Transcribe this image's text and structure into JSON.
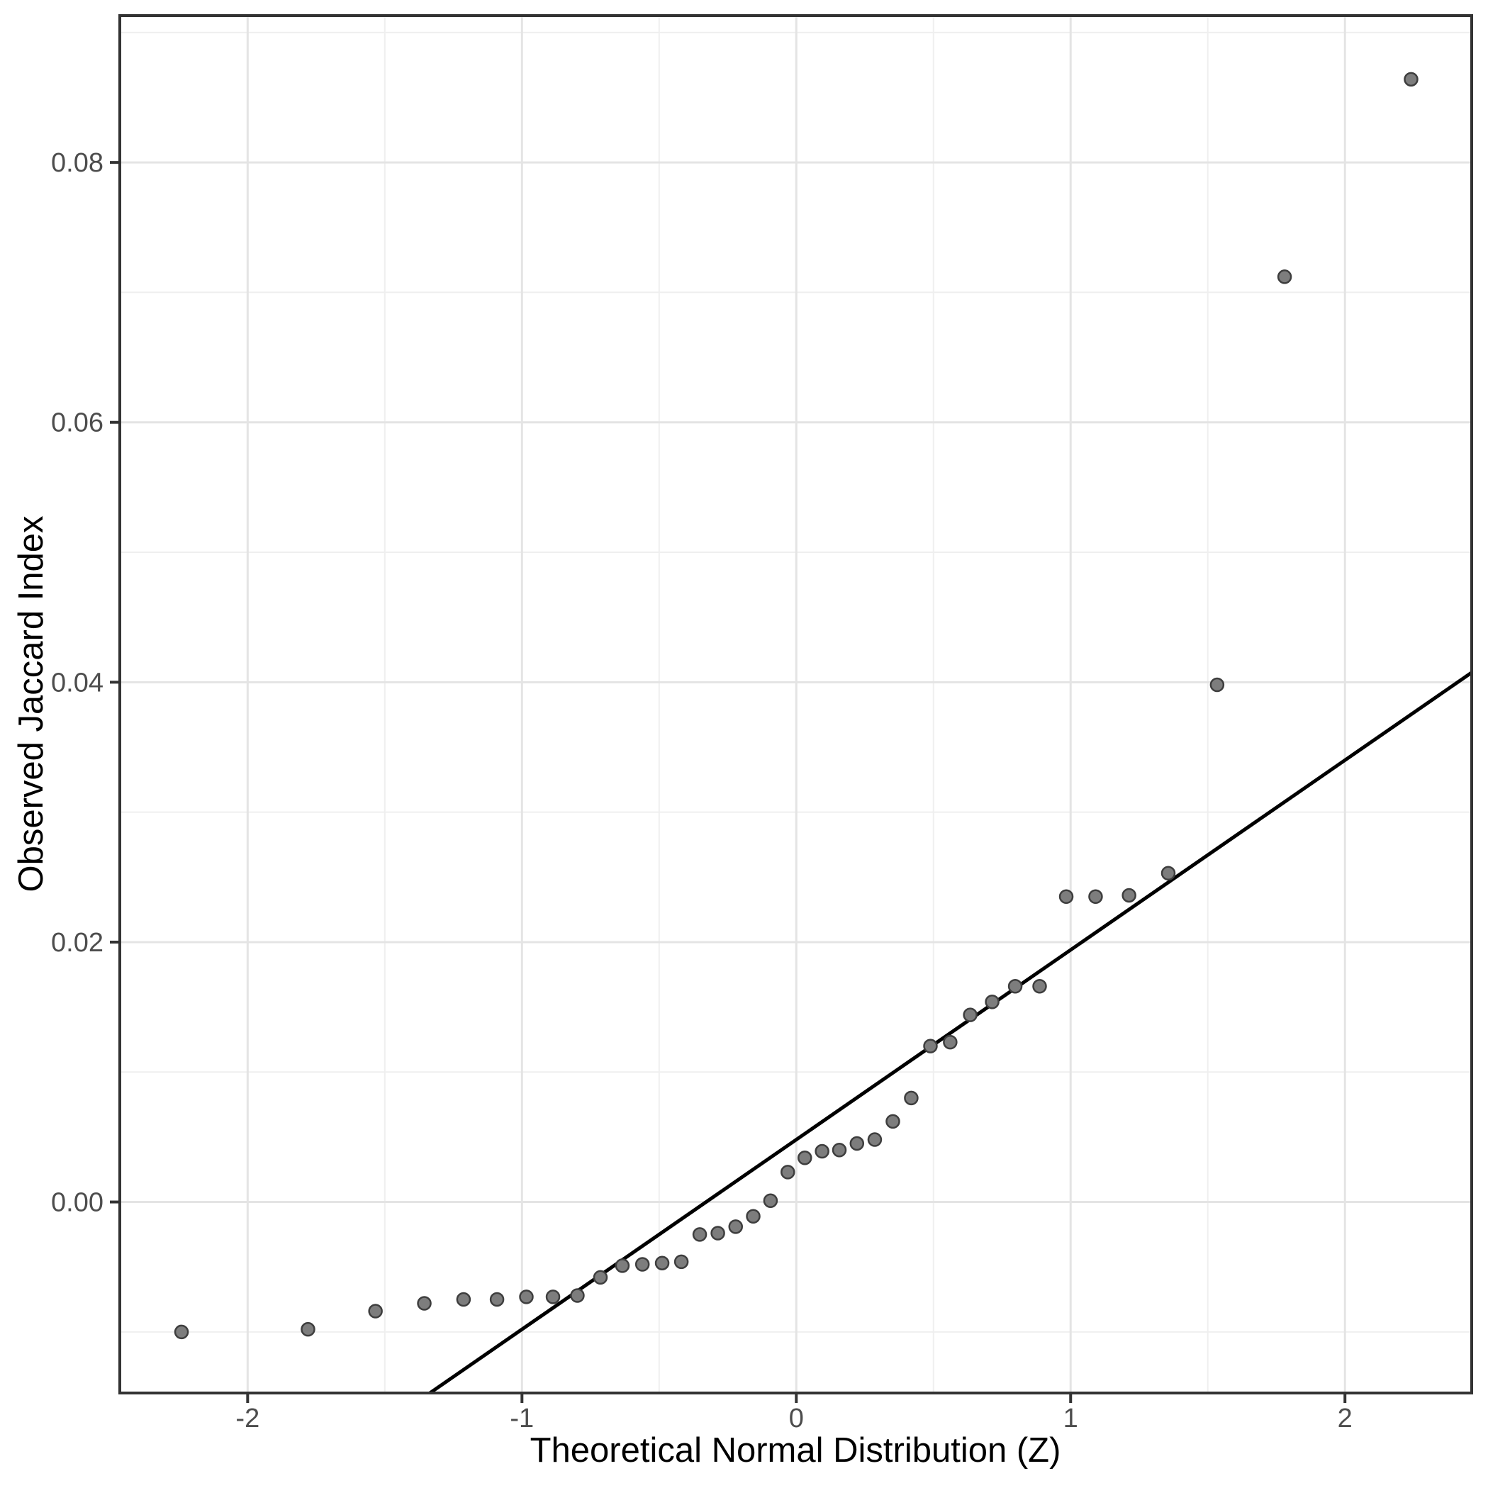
{
  "chart_data": {
    "type": "scatter",
    "subtype": "qq-plot",
    "title": "",
    "xlabel": "Theoretical Normal Distribution (Z)",
    "ylabel": "Observed Jaccard Index",
    "xlim": [
      -2.466,
      2.462
    ],
    "ylim": [
      -0.0147,
      0.0913
    ],
    "grid": true,
    "legend": "none",
    "x_ticks": [
      {
        "value": -2,
        "label": "-2"
      },
      {
        "value": -1,
        "label": "-1"
      },
      {
        "value": 0,
        "label": "0"
      },
      {
        "value": 1,
        "label": "1"
      },
      {
        "value": 2,
        "label": "2"
      }
    ],
    "y_ticks": [
      {
        "value": 0.0,
        "label": "0.00"
      },
      {
        "value": 0.02,
        "label": "0.02"
      },
      {
        "value": 0.04,
        "label": "0.04"
      },
      {
        "value": 0.06,
        "label": "0.06"
      },
      {
        "value": 0.08,
        "label": "0.08"
      }
    ],
    "x_minor_ticks": [
      -1.5,
      -0.5,
      0.5,
      1.5
    ],
    "y_minor_ticks": [
      -0.01,
      0.01,
      0.03,
      0.05,
      0.07,
      0.09
    ],
    "points": [
      {
        "z": -2.241,
        "y": -0.01
      },
      {
        "z": -1.78,
        "y": -0.0098
      },
      {
        "z": -1.534,
        "y": -0.0084
      },
      {
        "z": -1.356,
        "y": -0.0078
      },
      {
        "z": -1.213,
        "y": -0.0075
      },
      {
        "z": -1.091,
        "y": -0.0075
      },
      {
        "z": -0.984,
        "y": -0.0073
      },
      {
        "z": -0.887,
        "y": -0.0073
      },
      {
        "z": -0.798,
        "y": -0.0072
      },
      {
        "z": -0.714,
        "y": -0.0058
      },
      {
        "z": -0.634,
        "y": -0.0049
      },
      {
        "z": -0.561,
        "y": -0.0048
      },
      {
        "z": -0.489,
        "y": -0.0047
      },
      {
        "z": -0.419,
        "y": -0.0046
      },
      {
        "z": -0.352,
        "y": -0.0025
      },
      {
        "z": -0.286,
        "y": -0.0024
      },
      {
        "z": -0.221,
        "y": -0.0019
      },
      {
        "z": -0.157,
        "y": -0.0011
      },
      {
        "z": -0.094,
        "y": 0.0001
      },
      {
        "z": -0.031,
        "y": 0.0023
      },
      {
        "z": 0.031,
        "y": 0.0034
      },
      {
        "z": 0.094,
        "y": 0.0039
      },
      {
        "z": 0.157,
        "y": 0.004
      },
      {
        "z": 0.221,
        "y": 0.0045
      },
      {
        "z": 0.286,
        "y": 0.0048
      },
      {
        "z": 0.352,
        "y": 0.0062
      },
      {
        "z": 0.419,
        "y": 0.008
      },
      {
        "z": 0.489,
        "y": 0.012
      },
      {
        "z": 0.561,
        "y": 0.0123
      },
      {
        "z": 0.634,
        "y": 0.0144
      },
      {
        "z": 0.714,
        "y": 0.0154
      },
      {
        "z": 0.798,
        "y": 0.0166
      },
      {
        "z": 0.887,
        "y": 0.0166
      },
      {
        "z": 0.984,
        "y": 0.0235
      },
      {
        "z": 1.091,
        "y": 0.0235
      },
      {
        "z": 1.213,
        "y": 0.0236
      },
      {
        "z": 1.356,
        "y": 0.0253
      },
      {
        "z": 1.534,
        "y": 0.0398
      },
      {
        "z": 1.78,
        "y": 0.0712
      },
      {
        "z": 2.241,
        "y": 0.0864
      }
    ],
    "reference_line": {
      "slope": 0.0146,
      "intercept": 0.0048
    },
    "colors": {
      "background": "#ffffff",
      "panel_background": "#ffffff",
      "panel_border": "#333333",
      "grid_major": "#e4e4e4",
      "grid_minor": "#efefef",
      "point_fill": "#7d7d7d",
      "point_stroke": "#3e3e3e",
      "reference_line_color": "#000000",
      "tick_mark": "#333333",
      "tick_label": "#4d4d4d",
      "axis_title": "#000000"
    }
  }
}
